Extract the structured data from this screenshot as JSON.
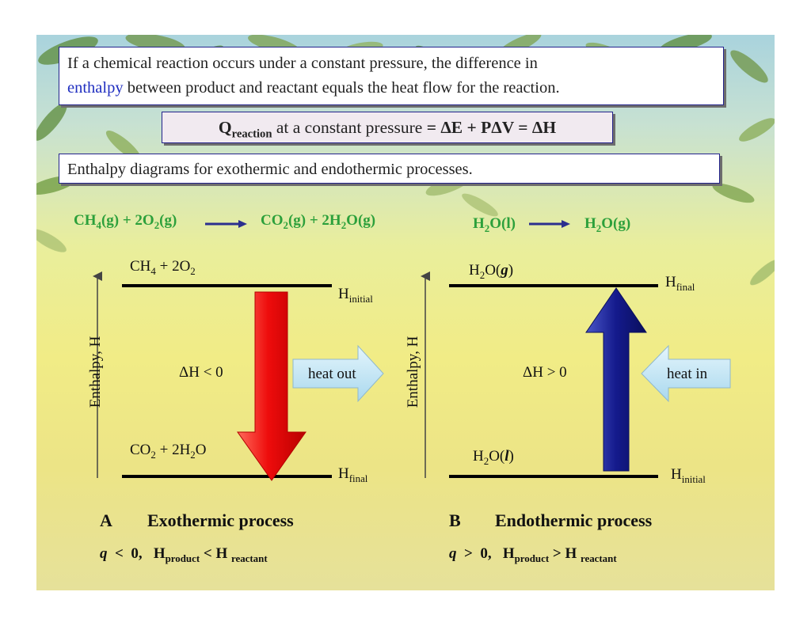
{
  "intro": {
    "line1": "If a chemical reaction occurs under a constant pressure, the difference in",
    "line2_word": "enthalpy",
    "line2_rest": " between product and reactant equals the heat flow for the reaction."
  },
  "equation_box": {
    "q": "Q",
    "q_sub": "reaction",
    "middle": " at a constant pressure ",
    "rhs": "= ΔE + PΔV = ΔH"
  },
  "diagrams_title": "Enthalpy diagrams for exothermic and endothermic processes.",
  "colors": {
    "green_text": "#2ca03b",
    "red_arrow": "#ee0c0c",
    "blue_arrow": "#141a8c",
    "box_border": "#23238c",
    "heat_arrow": "#bfe4f4"
  },
  "panel_a": {
    "reaction": {
      "r1": "CH",
      "r1_sub": "4",
      "r2": "(g) + 2O",
      "r2_sub": "2",
      "r3": "(g)",
      "p1": "CO",
      "p1_sub": "2",
      "p2": "(g) + 2H",
      "p2_sub": "2",
      "p3": "O(g)"
    },
    "top_species": {
      "a": "CH",
      "a_sub": "4",
      "b": " + 2O",
      "b_sub": "2"
    },
    "bottom_species": {
      "a": "CO",
      "a_sub": "2",
      "b": " + 2H",
      "b_sub": "2",
      "c": "O"
    },
    "h_top": {
      "main": "H",
      "sub": "initial"
    },
    "h_bottom": {
      "main": "H",
      "sub": "final"
    },
    "axis_label": "Enthalpy, H",
    "delta": "ΔH < 0",
    "heat_label": "heat out",
    "letter": "A",
    "process": "Exothermic process",
    "condition": {
      "q": "q",
      "rel": "  <  0,",
      "h1": "H",
      "h1_sub": "product",
      "mid": " < H ",
      "h2_sub": "reactant"
    }
  },
  "panel_b": {
    "reaction": {
      "r1": "H",
      "r1_sub": "2",
      "r2": "O(l)",
      "p1": "H",
      "p1_sub": "2",
      "p2": "O(g)"
    },
    "top_species": {
      "a": "H",
      "a_sub": "2",
      "b": "O(",
      "b_it": "g",
      "c": ")"
    },
    "bottom_species": {
      "a": "H",
      "a_sub": "2",
      "b": "O(",
      "b_it": "l",
      "c": ")"
    },
    "h_top": {
      "main": "H",
      "sub": "final"
    },
    "h_bottom": {
      "main": "H",
      "sub": "initial"
    },
    "axis_label": "Enthalpy, H",
    "delta": "ΔH > 0",
    "heat_label": "heat in",
    "letter": "B",
    "process": "Endothermic process",
    "condition": {
      "q": "q",
      "rel": "  >  0,",
      "h1": "H",
      "h1_sub": "product",
      "mid": " > H ",
      "h2_sub": "reactant"
    }
  }
}
